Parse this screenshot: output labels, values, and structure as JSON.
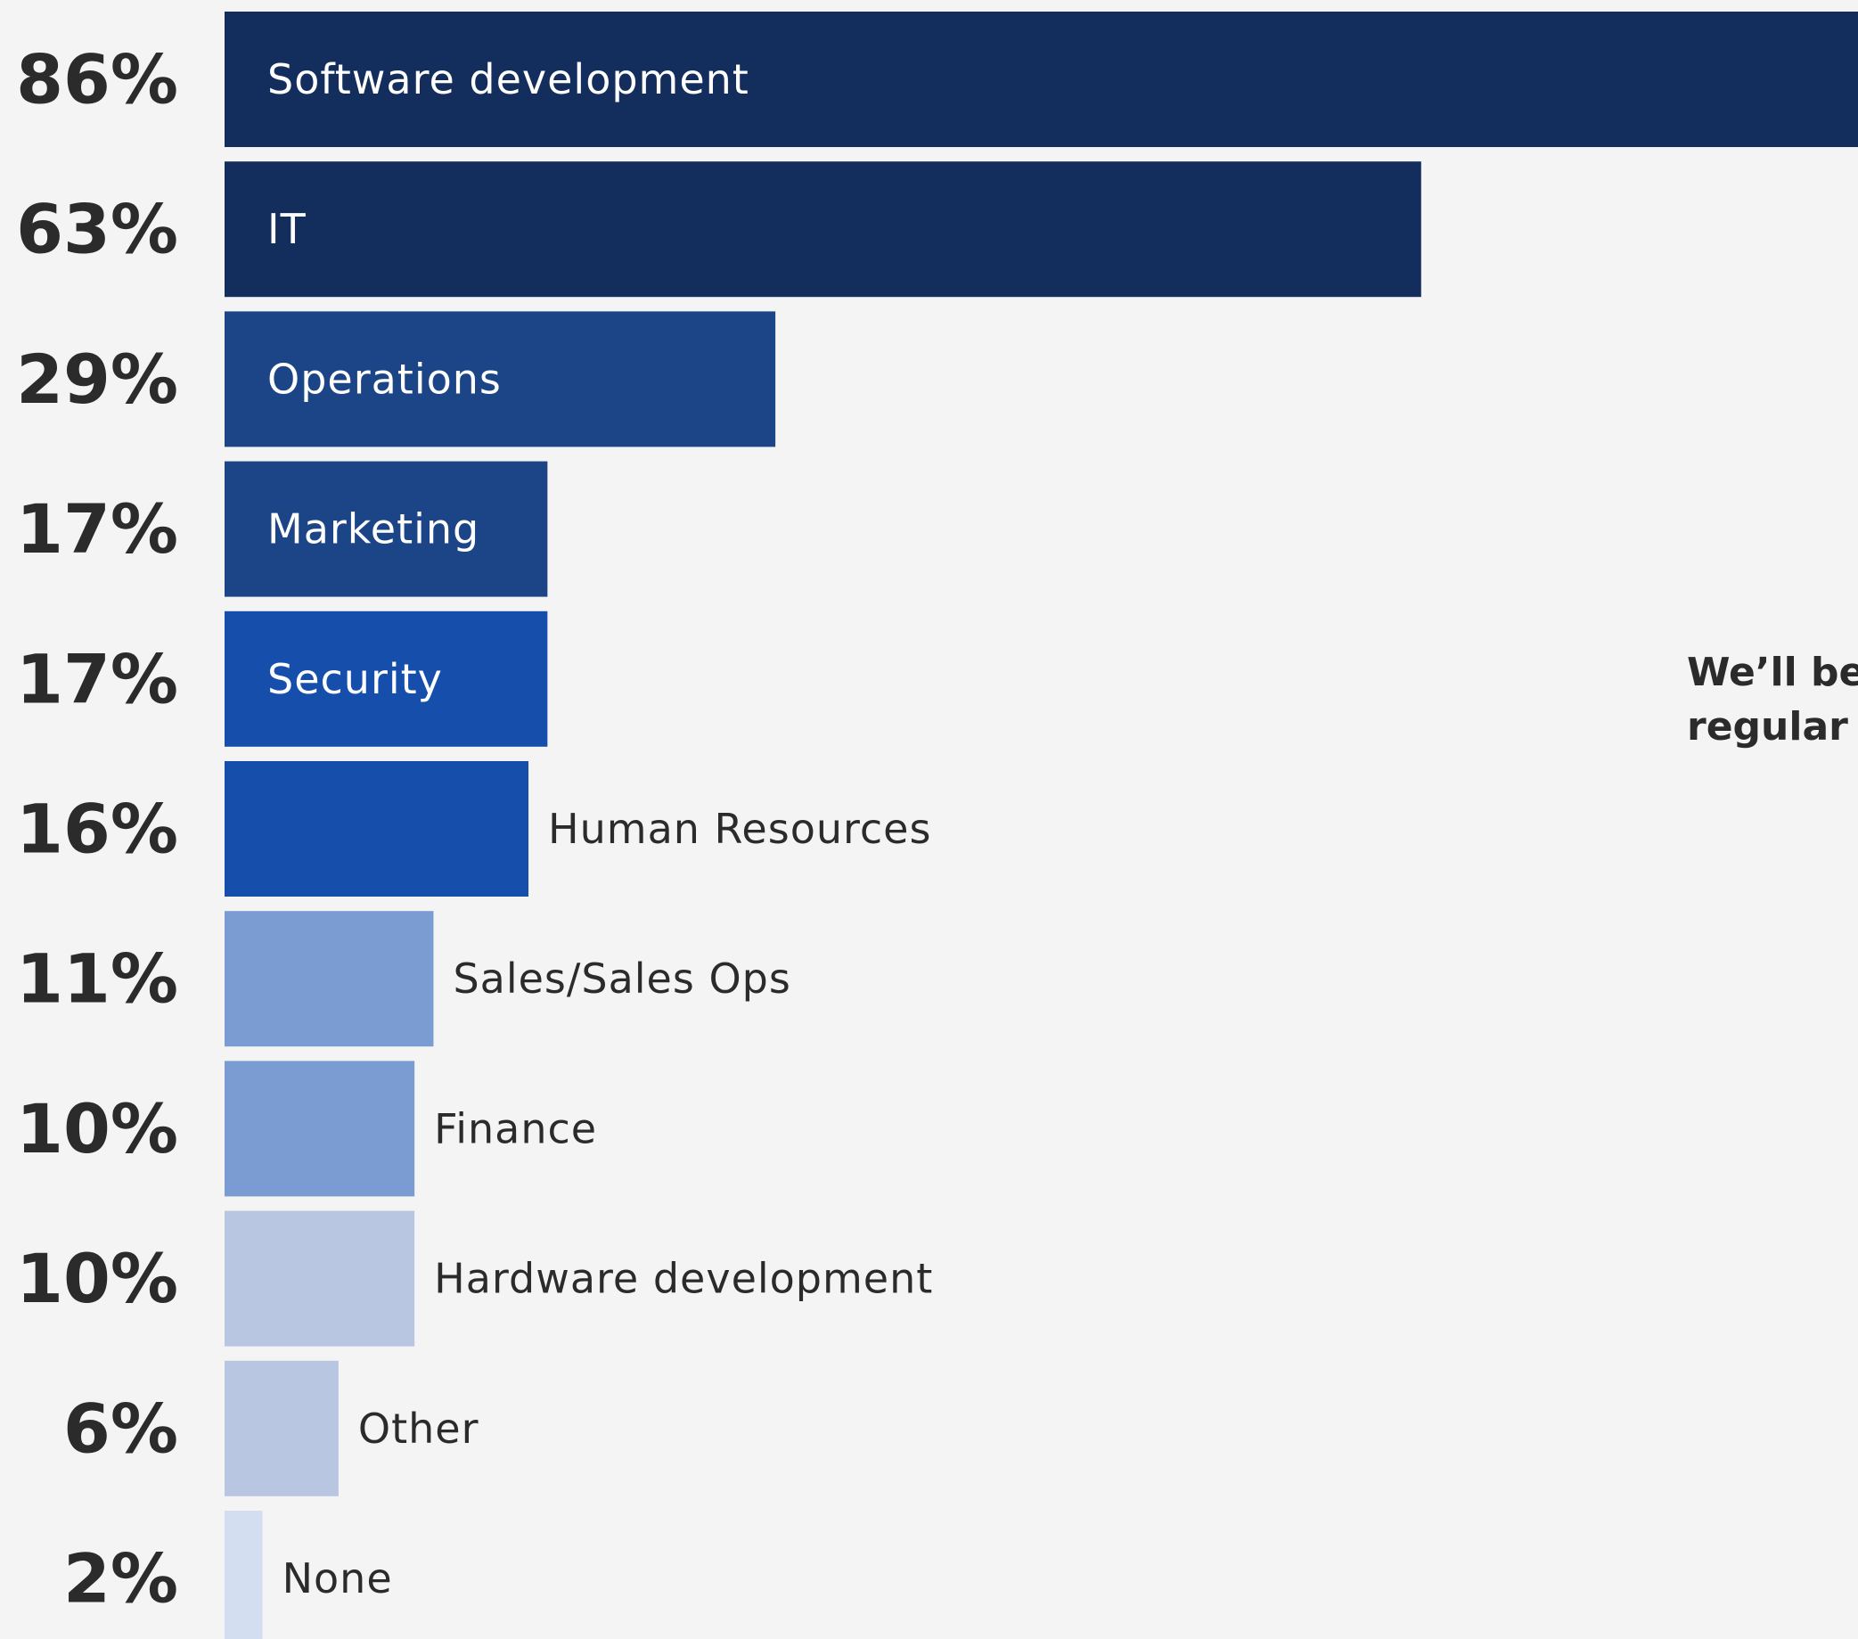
{
  "chart_data": {
    "type": "bar",
    "orientation": "horizontal",
    "categories": [
      "Software development",
      "IT",
      "Operations",
      "Marketing",
      "Security",
      "Human Resources",
      "Sales/Sales Ops",
      "Finance",
      "Hardware development",
      "Other",
      "None"
    ],
    "values": [
      86,
      63,
      29,
      17,
      17,
      16,
      11,
      10,
      10,
      6,
      2
    ],
    "value_labels": [
      "86%",
      "63%",
      "29%",
      "17%",
      "17%",
      "16%",
      "11%",
      "10%",
      "10%",
      "6%",
      "2%"
    ],
    "colors": [
      "#132d5c",
      "#132d5c",
      "#1b4586",
      "#1b4586",
      "#154fab",
      "#154fab",
      "#7a9cd3",
      "#7a9cd3",
      "#b8c6e1",
      "#b8c6e1",
      "#d3def1"
    ],
    "label_colors": [
      "#ffffff",
      "#ffffff",
      "#ffffff",
      "#ffffff",
      "#ffffff",
      "#2b2b2b",
      "#2b2b2b",
      "#2b2b2b",
      "#2b2b2b",
      "#2b2b2b",
      "#2b2b2b"
    ],
    "label_inside": [
      true,
      true,
      true,
      true,
      true,
      false,
      false,
      false,
      false,
      false,
      false
    ],
    "xlim": [
      0,
      86
    ],
    "grid": false,
    "legend": "none"
  },
  "side_note": {
    "line1": "We’ll be",
    "line2": "regular"
  },
  "colors": {
    "background": "#f4f4f4",
    "text": "#2b2b2b"
  }
}
